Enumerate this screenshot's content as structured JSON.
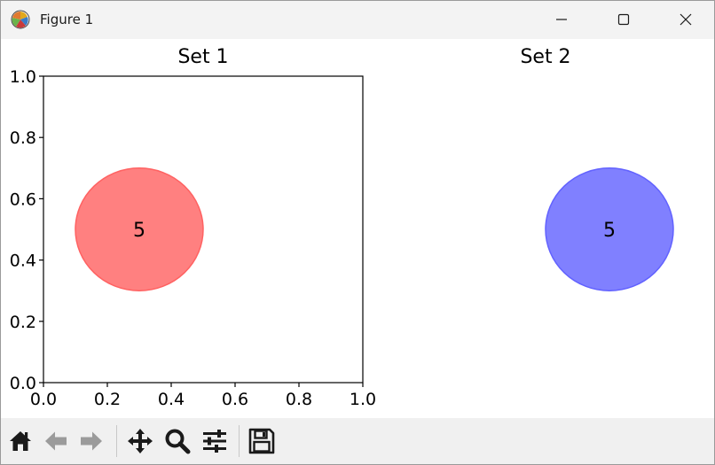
{
  "window": {
    "title": "Figure 1"
  },
  "titlebar_buttons": [
    "minimize-icon",
    "maximize-icon",
    "close-icon"
  ],
  "toolbar": {
    "tools": [
      "home-icon",
      "back-arrow-icon",
      "forward-arrow-icon",
      "pan-move-icon",
      "zoom-magnifier-icon",
      "configure-subplots-icon",
      "save-floppy-icon"
    ]
  },
  "chart_data": [
    {
      "type": "scatter",
      "title": "Set 1",
      "xlim": [
        0.0,
        1.0
      ],
      "ylim": [
        0.0,
        1.0
      ],
      "axes_visible": true,
      "x_tick_labels": [
        "0.0",
        "0.2",
        "0.4",
        "0.6",
        "0.8",
        "1.0"
      ],
      "y_tick_labels": [
        "0.0",
        "0.2",
        "0.4",
        "0.6",
        "0.8",
        "1.0"
      ],
      "circles": [
        {
          "cx": 0.3,
          "cy": 0.5,
          "r": 0.2,
          "label": "5",
          "fill": "#ff8080",
          "edge": "#ff6262"
        }
      ]
    },
    {
      "type": "scatter",
      "title": "Set 2",
      "xlim": [
        0.0,
        1.0
      ],
      "ylim": [
        0.0,
        1.0
      ],
      "axes_visible": false,
      "circles": [
        {
          "cx": 0.7,
          "cy": 0.5,
          "r": 0.2,
          "label": "5",
          "fill": "#8080ff",
          "edge": "#6262ff"
        }
      ]
    }
  ]
}
